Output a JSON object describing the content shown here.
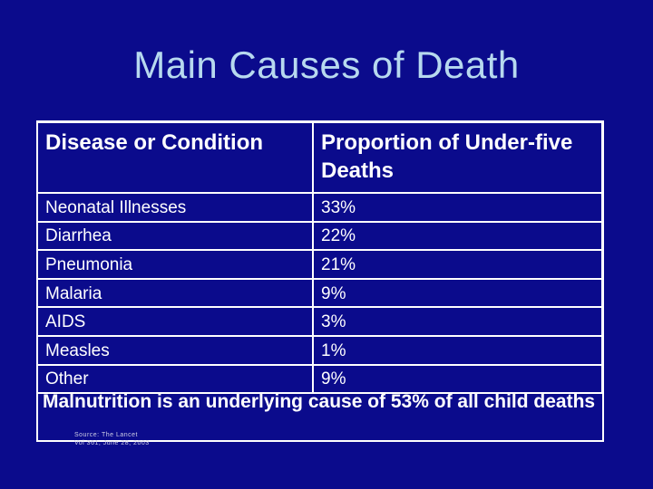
{
  "title": "Main Causes of Death",
  "table": {
    "headers": [
      "Disease or Condition",
      "Proportion of  Under-five  Deaths"
    ],
    "rows": [
      {
        "condition": "Neonatal Illnesses",
        "proportion": "33%"
      },
      {
        "condition": "Diarrhea",
        "proportion": "22%"
      },
      {
        "condition": "Pneumonia",
        "proportion": "21%"
      },
      {
        "condition": "Malaria",
        "proportion": "9%"
      },
      {
        "condition": "AIDS",
        "proportion": "3%"
      },
      {
        "condition": "Measles",
        "proportion": "1%"
      },
      {
        "condition": "Other",
        "proportion": "9%"
      }
    ]
  },
  "footnote": "Malnutrition is an underlying cause of 53% of all child deaths",
  "source": {
    "line1": "Source: The Lancet",
    "line2": "Vol 361, June 28, 2003"
  },
  "colors": {
    "background": "#0b0b8c",
    "title": "#b7d9ef",
    "text": "#ffffff"
  }
}
